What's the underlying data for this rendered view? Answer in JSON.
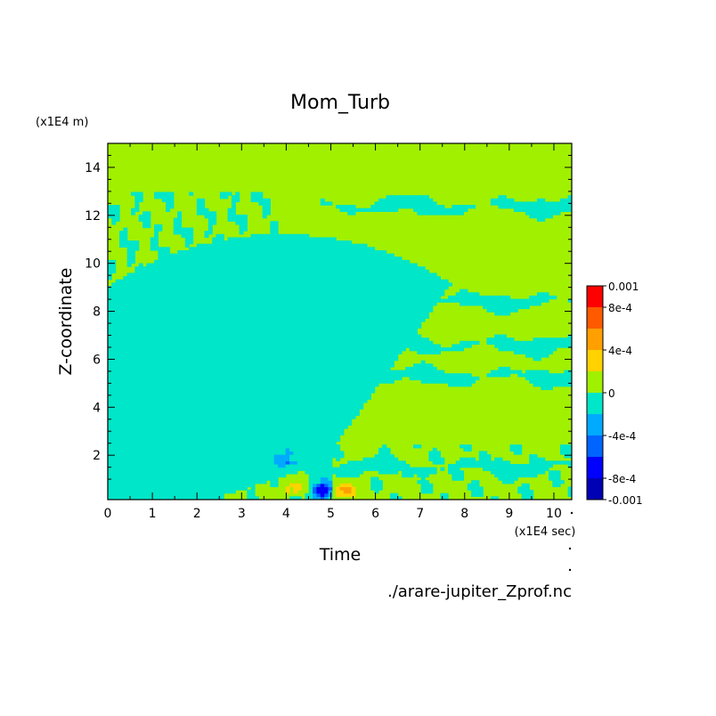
{
  "chart_data": {
    "type": "heatmap",
    "title": "Mom_Turb",
    "xlabel": "Time",
    "ylabel": "Z-coordinate",
    "x_unit": "(x1E4 sec)",
    "y_unit": "(x1E4 m)",
    "footer": "./arare-jupiter_Zprof.nc",
    "xlim": [
      0,
      10.4
    ],
    "ylim": [
      0.15,
      15
    ],
    "x_ticks": [
      0,
      1,
      2,
      3,
      4,
      5,
      6,
      7,
      8,
      9,
      10
    ],
    "x_tick_labels": [
      "0",
      "1",
      "2",
      "3",
      "4",
      "5",
      "6",
      "7",
      "8",
      "9",
      "10"
    ],
    "y_ticks": [
      2,
      4,
      6,
      8,
      10,
      12,
      14
    ],
    "y_tick_labels": [
      "2",
      "4",
      "6",
      "8",
      "10",
      "12",
      "14"
    ],
    "colorbar": {
      "levels": [
        -0.001,
        -0.0008,
        -0.0006,
        -0.0004,
        -0.0002,
        0,
        0.0002,
        0.0004,
        0.0006,
        0.0008,
        0.001
      ],
      "colors": [
        "#0000b4",
        "#0000ff",
        "#0064ff",
        "#00aaff",
        "#00e6c8",
        "#a0f000",
        "#ffd200",
        "#ffa000",
        "#ff5a00",
        "#ff0000",
        "#ff4040"
      ],
      "tick_labels": [
        "0.001",
        "8e-4",
        "4e-4",
        "0",
        "-4e-4",
        "-8e-4",
        "-0.001"
      ]
    },
    "field_description": {
      "background": 0,
      "turbulent_region": {
        "x": [
          0,
          3.5
        ],
        "z": [
          0.2,
          13
        ]
      },
      "negative_bands": [
        {
          "z": 12.4,
          "x": [
            4.8,
            10.4
          ]
        },
        {
          "z": 8.4,
          "x": [
            3.2,
            10.4
          ]
        },
        {
          "z": 6.6,
          "x": [
            3.5,
            10.4
          ]
        },
        {
          "z": 5.3,
          "x": [
            3.0,
            10.4
          ]
        },
        {
          "z": 1.5,
          "x": [
            4.0,
            10.4
          ]
        }
      ],
      "positive_spots": [
        {
          "x": 4.2,
          "z": 0.6,
          "value": 0.0004
        },
        {
          "x": 5.3,
          "z": 0.5,
          "value": 0.0006
        }
      ],
      "negative_spots": [
        {
          "x": 4.8,
          "z": 0.5,
          "value": -0.0008
        },
        {
          "x": 3.9,
          "z": 1.8,
          "value": -0.0004
        }
      ]
    }
  }
}
